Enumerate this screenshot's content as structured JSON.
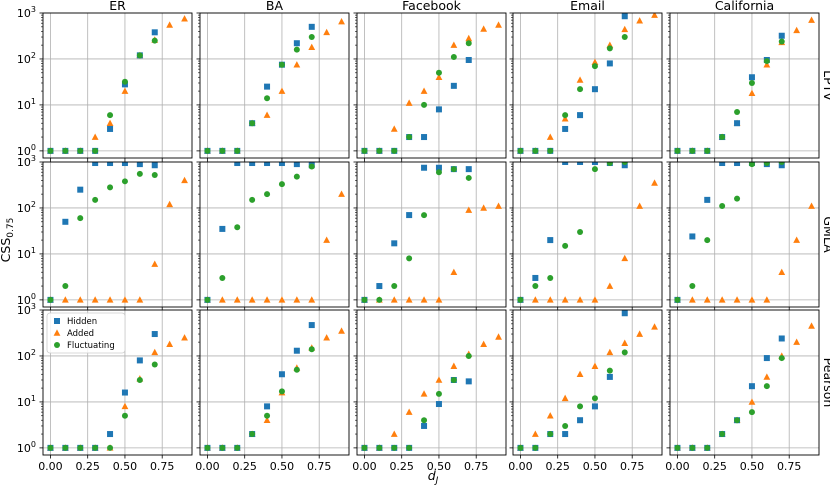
{
  "chart_data": {
    "type": "scatter",
    "columns": [
      "ER",
      "BA",
      "Facebook",
      "Email",
      "California"
    ],
    "rows": [
      "LPTV",
      "GMLA",
      "Pearson"
    ],
    "xlabel_main": "d",
    "xlabel_sub": "J",
    "ylabel_main": "CSS",
    "ylabel_sub": "0.75",
    "x_ticks": [
      "0.00",
      "0.25",
      "0.50",
      "0.75"
    ],
    "x_tick_values": [
      0,
      0.25,
      0.5,
      0.75
    ],
    "xlim": [
      -0.05,
      0.95
    ],
    "y_scale": "log",
    "ylim": [
      0.7,
      1000
    ],
    "y_ticks": [
      {
        "value": 1,
        "base": "10",
        "exp": "0"
      },
      {
        "value": 10,
        "base": "10",
        "exp": "1"
      },
      {
        "value": 100,
        "base": "10",
        "exp": "2"
      },
      {
        "value": 1000,
        "base": "10",
        "exp": "3"
      }
    ],
    "grid": true,
    "legend": {
      "placement": "upper-left (Pearson, ER panel)",
      "entries": [
        {
          "name": "Hidden",
          "marker": "square",
          "color": "#1f77b4"
        },
        {
          "name": "Added",
          "marker": "triangle",
          "color": "#ff7f0e"
        },
        {
          "name": "Fluctuating",
          "marker": "circle",
          "color": "#2ca02c"
        }
      ]
    },
    "series_x": {
      "Hidden": [
        0,
        0.1,
        0.2,
        0.3,
        0.4,
        0.5,
        0.6,
        0.7
      ],
      "Added": [
        0,
        0.1,
        0.2,
        0.3,
        0.4,
        0.5,
        0.6,
        0.7,
        0.8,
        0.9
      ],
      "Fluctuating": [
        0,
        0.1,
        0.2,
        0.3,
        0.4,
        0.5,
        0.6,
        0.7
      ]
    },
    "panels": [
      [
        {
          "Hidden": [
            1,
            1,
            1,
            1,
            3,
            28,
            120,
            380
          ],
          "Added": [
            1,
            1,
            1,
            2,
            4,
            20,
            120,
            260,
            550,
            750
          ],
          "Fluctuating": [
            1,
            1,
            1,
            1,
            6,
            32,
            120,
            250
          ]
        },
        {
          "Hidden": [
            1,
            1,
            1,
            4,
            25,
            75,
            220,
            500
          ],
          "Added": [
            1,
            1,
            1,
            4,
            6,
            20,
            75,
            180,
            380,
            650
          ],
          "Fluctuating": [
            1,
            1,
            1,
            4,
            14,
            75,
            160,
            300
          ]
        },
        {
          "Hidden": [
            1,
            1,
            1,
            2,
            2,
            8,
            26,
            95
          ],
          "Added": [
            1,
            1,
            3,
            11,
            20,
            40,
            200,
            280,
            450,
            550
          ],
          "Fluctuating": [
            1,
            1,
            1,
            2,
            10,
            50,
            110,
            220
          ]
        },
        {
          "Hidden": [
            1,
            1,
            1,
            3,
            6,
            22,
            80,
            850
          ],
          "Added": [
            1,
            1,
            2,
            5,
            35,
            85,
            200,
            440,
            680,
            900
          ],
          "Fluctuating": [
            1,
            1,
            1,
            6,
            22,
            70,
            170,
            300
          ]
        },
        {
          "Hidden": [
            1,
            1,
            1,
            2,
            4,
            40,
            95,
            320
          ],
          "Added": [
            1,
            1,
            1,
            2,
            4,
            18,
            75,
            230,
            420,
            700
          ],
          "Fluctuating": [
            1,
            1,
            1,
            2,
            7,
            30,
            90,
            240
          ]
        }
      ],
      [
        {
          "Hidden": [
            1,
            50,
            250,
            950,
            950,
            950,
            900,
            850
          ],
          "Added": [
            1,
            1,
            1,
            1,
            1,
            1,
            1,
            6,
            120,
            400
          ],
          "Fluctuating": [
            1,
            2,
            60,
            150,
            280,
            380,
            550,
            520
          ]
        },
        {
          "Hidden": [
            1,
            35,
            950,
            950,
            950,
            950,
            900,
            850
          ],
          "Added": [
            1,
            1,
            1,
            1,
            1,
            1,
            1,
            1,
            20,
            200
          ],
          "Fluctuating": [
            1,
            3,
            38,
            150,
            200,
            330,
            480,
            800
          ]
        },
        {
          "Hidden": [
            1,
            2,
            17,
            70,
            750,
            750,
            700,
            700
          ],
          "Added": [
            1,
            1,
            1,
            1,
            1,
            1,
            4,
            90,
            100,
            110
          ],
          "Fluctuating": [
            1,
            1,
            2,
            8,
            70,
            600,
            700,
            450
          ]
        },
        {
          "Hidden": [
            1,
            3,
            20,
            1000,
            1000,
            1000,
            950,
            850
          ],
          "Added": [
            1,
            1,
            1,
            1,
            1,
            1,
            2,
            8,
            110,
            350
          ],
          "Fluctuating": [
            1,
            2,
            3,
            15,
            30,
            700,
            950,
            1000
          ]
        },
        {
          "Hidden": [
            1,
            24,
            150,
            950,
            950,
            950,
            900,
            850
          ],
          "Added": [
            1,
            1,
            1,
            1,
            1,
            1,
            1,
            4,
            20,
            110
          ],
          "Fluctuating": [
            1,
            2,
            20,
            110,
            160,
            900,
            950,
            1000
          ]
        }
      ],
      [
        {
          "Hidden": [
            1,
            1,
            1,
            1,
            2,
            16,
            80,
            300
          ],
          "Added": [
            1,
            1,
            1,
            1,
            1,
            8,
            32,
            120,
            180,
            250
          ],
          "Fluctuating": [
            1,
            1,
            1,
            1,
            1,
            5,
            30,
            65
          ]
        },
        {
          "Hidden": [
            1,
            1,
            1,
            2,
            8,
            40,
            130,
            470
          ],
          "Added": [
            1,
            1,
            1,
            2,
            4,
            16,
            55,
            150,
            250,
            350
          ],
          "Fluctuating": [
            1,
            1,
            1,
            2,
            5,
            17,
            50,
            140
          ]
        },
        {
          "Hidden": [
            1,
            1,
            1,
            1,
            3,
            9,
            30,
            28
          ],
          "Added": [
            1,
            1,
            2,
            6,
            15,
            30,
            60,
            110,
            180,
            260
          ],
          "Fluctuating": [
            1,
            1,
            1,
            1,
            4,
            15,
            30,
            100
          ]
        },
        {
          "Hidden": [
            1,
            1,
            2,
            2,
            4,
            8,
            35,
            850
          ],
          "Added": [
            1,
            2,
            5,
            12,
            40,
            60,
            120,
            190,
            300,
            430
          ],
          "Fluctuating": [
            1,
            1,
            2,
            3,
            8,
            12,
            48,
            120
          ]
        },
        {
          "Hidden": [
            1,
            1,
            1,
            2,
            4,
            22,
            90,
            240
          ],
          "Added": [
            1,
            1,
            1,
            2,
            4,
            10,
            35,
            100,
            200,
            450
          ],
          "Fluctuating": [
            1,
            1,
            1,
            2,
            4,
            6,
            22,
            90
          ]
        }
      ]
    ]
  }
}
